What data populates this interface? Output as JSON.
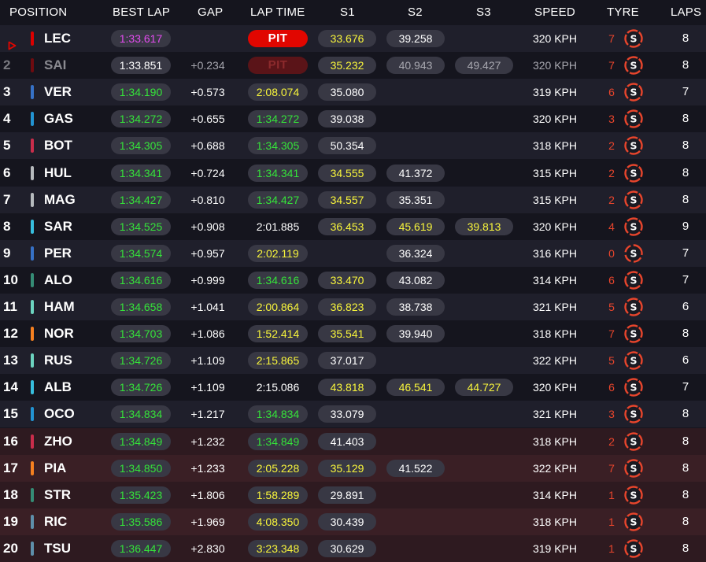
{
  "header": {
    "position": "POSITION",
    "best_lap": "BEST LAP",
    "gap": "GAP",
    "lap_time": "LAP TIME",
    "s1": "S1",
    "s2": "S2",
    "s3": "S3",
    "speed": "SPEED",
    "tyre": "TYRE",
    "laps": "LAPS"
  },
  "colors": {
    "personal_best": "#35e33a",
    "overall_best": "#e44cf0",
    "yellow_sector": "#f8f53b",
    "pit": "#e10600",
    "soft_tyre": "#e8452c"
  },
  "rows": [
    {
      "pos": "",
      "driver": "LEC",
      "team_color": "#dc0000",
      "best": "1:33.617",
      "best_color": "purple",
      "gap": "",
      "lap": "PIT",
      "lap_type": "pit",
      "s1": "33.676",
      "s1_color": "yellow",
      "s2": "39.258",
      "s2_color": "white",
      "s3": "",
      "s3_color": "",
      "speed": "320 KPH",
      "stint": "7",
      "tyre": "soft",
      "laps": "8",
      "marker": true
    },
    {
      "pos": "2",
      "driver": "SAI",
      "team_color": "#dc0000",
      "best": "1:33.851",
      "best_color": "white",
      "gap": "+0.234",
      "lap": "PIT",
      "lap_type": "pitdim",
      "s1": "35.232",
      "s1_color": "yellow",
      "s2": "40.943",
      "s2_color": "grey",
      "s3": "49.427",
      "s3_color": "grey",
      "speed": "320 KPH",
      "stint": "7",
      "tyre": "soft",
      "laps": "8",
      "dim": true
    },
    {
      "pos": "3",
      "driver": "VER",
      "team_color": "#3671c6",
      "best": "1:34.190",
      "best_color": "green",
      "gap": "+0.573",
      "lap": "2:08.074",
      "lap_type": "yellow",
      "s1": "35.080",
      "s1_color": "white",
      "s2": "",
      "s2_color": "",
      "s3": "",
      "s3_color": "",
      "speed": "319 KPH",
      "stint": "6",
      "tyre": "soft",
      "laps": "7"
    },
    {
      "pos": "4",
      "driver": "GAS",
      "team_color": "#2293d1",
      "best": "1:34.272",
      "best_color": "green",
      "gap": "+0.655",
      "lap": "1:34.272",
      "lap_type": "green",
      "s1": "39.038",
      "s1_color": "white",
      "s2": "",
      "s2_color": "",
      "s3": "",
      "s3_color": "",
      "speed": "320 KPH",
      "stint": "3",
      "tyre": "soft",
      "laps": "8"
    },
    {
      "pos": "5",
      "driver": "BOT",
      "team_color": "#c92d4b",
      "best": "1:34.305",
      "best_color": "green",
      "gap": "+0.688",
      "lap": "1:34.305",
      "lap_type": "green",
      "s1": "50.354",
      "s1_color": "white",
      "s2": "",
      "s2_color": "",
      "s3": "",
      "s3_color": "",
      "speed": "318 KPH",
      "stint": "2",
      "tyre": "soft",
      "laps": "8"
    },
    {
      "pos": "6",
      "driver": "HUL",
      "team_color": "#b6babd",
      "best": "1:34.341",
      "best_color": "green",
      "gap": "+0.724",
      "lap": "1:34.341",
      "lap_type": "green",
      "s1": "34.555",
      "s1_color": "yellow",
      "s2": "41.372",
      "s2_color": "white",
      "s3": "",
      "s3_color": "",
      "speed": "315 KPH",
      "stint": "2",
      "tyre": "soft",
      "laps": "8"
    },
    {
      "pos": "7",
      "driver": "MAG",
      "team_color": "#b6babd",
      "best": "1:34.427",
      "best_color": "green",
      "gap": "+0.810",
      "lap": "1:34.427",
      "lap_type": "green",
      "s1": "34.557",
      "s1_color": "yellow",
      "s2": "35.351",
      "s2_color": "white",
      "s3": "",
      "s3_color": "",
      "speed": "315 KPH",
      "stint": "2",
      "tyre": "soft",
      "laps": "8"
    },
    {
      "pos": "8",
      "driver": "SAR",
      "team_color": "#37bedd",
      "best": "1:34.525",
      "best_color": "green",
      "gap": "+0.908",
      "lap": "2:01.885",
      "lap_type": "white",
      "s1": "36.453",
      "s1_color": "yellow",
      "s2": "45.619",
      "s2_color": "yellow",
      "s3": "39.813",
      "s3_color": "yellow",
      "speed": "320 KPH",
      "stint": "4",
      "tyre": "soft",
      "laps": "9"
    },
    {
      "pos": "9",
      "driver": "PER",
      "team_color": "#3671c6",
      "best": "1:34.574",
      "best_color": "green",
      "gap": "+0.957",
      "lap": "2:02.119",
      "lap_type": "yellow",
      "s1": "",
      "s1_color": "",
      "s2": "36.324",
      "s2_color": "white",
      "s3": "",
      "s3_color": "",
      "speed": "316 KPH",
      "stint": "0",
      "tyre": "soft-new",
      "laps": "7"
    },
    {
      "pos": "10",
      "driver": "ALO",
      "team_color": "#358c75",
      "best": "1:34.616",
      "best_color": "green",
      "gap": "+0.999",
      "lap": "1:34.616",
      "lap_type": "green",
      "s1": "33.470",
      "s1_color": "yellow",
      "s2": "43.082",
      "s2_color": "white",
      "s3": "",
      "s3_color": "",
      "speed": "314 KPH",
      "stint": "6",
      "tyre": "soft",
      "laps": "7"
    },
    {
      "pos": "11",
      "driver": "HAM",
      "team_color": "#6cd3bf",
      "best": "1:34.658",
      "best_color": "green",
      "gap": "+1.041",
      "lap": "2:00.864",
      "lap_type": "yellow",
      "s1": "36.823",
      "s1_color": "yellow",
      "s2": "38.738",
      "s2_color": "white",
      "s3": "",
      "s3_color": "",
      "speed": "321 KPH",
      "stint": "5",
      "tyre": "soft",
      "laps": "6"
    },
    {
      "pos": "12",
      "driver": "NOR",
      "team_color": "#f58020",
      "best": "1:34.703",
      "best_color": "green",
      "gap": "+1.086",
      "lap": "1:52.414",
      "lap_type": "yellow",
      "s1": "35.541",
      "s1_color": "yellow",
      "s2": "39.940",
      "s2_color": "white",
      "s3": "",
      "s3_color": "",
      "speed": "318 KPH",
      "stint": "7",
      "tyre": "soft",
      "laps": "8"
    },
    {
      "pos": "13",
      "driver": "RUS",
      "team_color": "#6cd3bf",
      "best": "1:34.726",
      "best_color": "green",
      "gap": "+1.109",
      "lap": "2:15.865",
      "lap_type": "yellow",
      "s1": "37.017",
      "s1_color": "white",
      "s2": "",
      "s2_color": "",
      "s3": "",
      "s3_color": "",
      "speed": "322 KPH",
      "stint": "5",
      "tyre": "soft",
      "laps": "6"
    },
    {
      "pos": "14",
      "driver": "ALB",
      "team_color": "#37bedd",
      "best": "1:34.726",
      "best_color": "green",
      "gap": "+1.109",
      "lap": "2:15.086",
      "lap_type": "white",
      "s1": "43.818",
      "s1_color": "yellow",
      "s2": "46.541",
      "s2_color": "yellow",
      "s3": "44.727",
      "s3_color": "yellow",
      "speed": "320 KPH",
      "stint": "6",
      "tyre": "soft",
      "laps": "7"
    },
    {
      "pos": "15",
      "driver": "OCO",
      "team_color": "#2293d1",
      "best": "1:34.834",
      "best_color": "green",
      "gap": "+1.217",
      "lap": "1:34.834",
      "lap_type": "green",
      "s1": "33.079",
      "s1_color": "white",
      "s2": "",
      "s2_color": "",
      "s3": "",
      "s3_color": "",
      "speed": "321 KPH",
      "stint": "3",
      "tyre": "soft",
      "laps": "8"
    },
    {
      "pos": "16",
      "driver": "ZHO",
      "team_color": "#c92d4b",
      "best": "1:34.849",
      "best_color": "green",
      "gap": "+1.232",
      "lap": "1:34.849",
      "lap_type": "green",
      "s1": "41.403",
      "s1_color": "white",
      "s2": "",
      "s2_color": "",
      "s3": "",
      "s3_color": "",
      "speed": "318 KPH",
      "stint": "2",
      "tyre": "soft",
      "laps": "8",
      "out": true
    },
    {
      "pos": "17",
      "driver": "PIA",
      "team_color": "#f58020",
      "best": "1:34.850",
      "best_color": "green",
      "gap": "+1.233",
      "lap": "2:05.228",
      "lap_type": "yellow",
      "s1": "35.129",
      "s1_color": "yellow",
      "s2": "41.522",
      "s2_color": "white",
      "s3": "",
      "s3_color": "",
      "speed": "322 KPH",
      "stint": "7",
      "tyre": "soft",
      "laps": "8",
      "out": true
    },
    {
      "pos": "18",
      "driver": "STR",
      "team_color": "#358c75",
      "best": "1:35.423",
      "best_color": "green",
      "gap": "+1.806",
      "lap": "1:58.289",
      "lap_type": "yellow",
      "s1": "29.891",
      "s1_color": "white",
      "s2": "",
      "s2_color": "",
      "s3": "",
      "s3_color": "",
      "speed": "314 KPH",
      "stint": "1",
      "tyre": "soft",
      "laps": "8",
      "out": true
    },
    {
      "pos": "19",
      "driver": "RIC",
      "team_color": "#5e8faa",
      "best": "1:35.586",
      "best_color": "green",
      "gap": "+1.969",
      "lap": "4:08.350",
      "lap_type": "yellow",
      "s1": "30.439",
      "s1_color": "white",
      "s2": "",
      "s2_color": "",
      "s3": "",
      "s3_color": "",
      "speed": "318 KPH",
      "stint": "1",
      "tyre": "soft",
      "laps": "8",
      "out": true
    },
    {
      "pos": "20",
      "driver": "TSU",
      "team_color": "#5e8faa",
      "best": "1:36.447",
      "best_color": "green",
      "gap": "+2.830",
      "lap": "3:23.348",
      "lap_type": "yellow",
      "s1": "30.629",
      "s1_color": "white",
      "s2": "",
      "s2_color": "",
      "s3": "",
      "s3_color": "",
      "speed": "319 KPH",
      "stint": "1",
      "tyre": "soft",
      "laps": "8",
      "out": true
    }
  ]
}
